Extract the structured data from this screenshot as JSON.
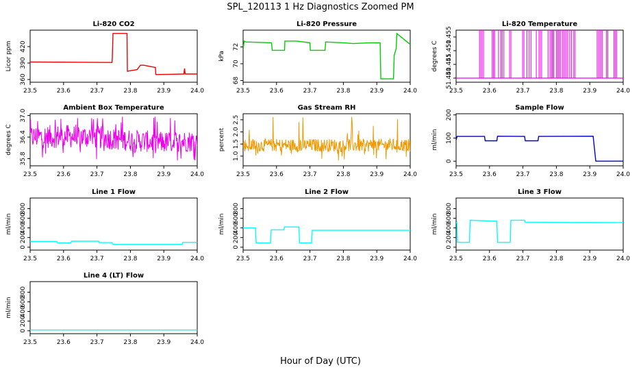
{
  "figure": {
    "title": "SPL_120113  1 Hz Diagnostics Zoomed PM",
    "xlabel": "Hour of Day (UTC)"
  },
  "chart_data": [
    {
      "type": "line",
      "title": "Li-820 CO2",
      "ylabel": "Licor ppm",
      "color": "#ee0000",
      "xlim": [
        23.5,
        24.0
      ],
      "ylim": [
        355,
        450
      ],
      "yticks": [
        360,
        390,
        420
      ],
      "ytick_labels": [
        "360",
        "390",
        "420"
      ],
      "xticks": [
        23.5,
        23.6,
        23.7,
        23.8,
        23.9,
        24.0
      ],
      "xtick_labels": [
        "23.5",
        "23.6",
        "23.7",
        "23.8",
        "23.9",
        "24.0"
      ],
      "x": [
        23.5,
        23.745,
        23.746,
        23.748,
        23.79,
        23.791,
        23.8,
        23.82,
        23.83,
        23.84,
        23.875,
        23.876,
        23.96,
        23.962,
        23.964,
        24.0
      ],
      "y": [
        392,
        391,
        400,
        444,
        444,
        375,
        376,
        378,
        386,
        386,
        382,
        369,
        370,
        380,
        370,
        370
      ]
    },
    {
      "type": "line",
      "title": "Li-820 Pressure",
      "ylabel": "kPa",
      "color": "#00cc00",
      "xlim": [
        23.5,
        24.0
      ],
      "ylim": [
        67.8,
        74.0
      ],
      "yticks": [
        68,
        70,
        72
      ],
      "ytick_labels": [
        "68",
        "70",
        "72"
      ],
      "xticks": [
        23.5,
        23.6,
        23.7,
        23.8,
        23.9,
        24.0
      ],
      "xtick_labels": [
        "23.5",
        "23.6",
        "23.7",
        "23.8",
        "23.9",
        "24.0"
      ],
      "x": [
        23.5,
        23.503,
        23.508,
        23.585,
        23.587,
        23.624,
        23.625,
        23.66,
        23.7,
        23.701,
        23.745,
        23.747,
        23.8,
        23.83,
        23.88,
        23.905,
        23.91,
        23.912,
        23.95,
        23.952,
        23.958,
        23.96,
        24.0
      ],
      "y": [
        71.7,
        72.7,
        72.6,
        72.5,
        71.6,
        71.6,
        72.7,
        72.7,
        72.5,
        71.6,
        71.6,
        72.6,
        72.5,
        72.4,
        72.5,
        72.5,
        72.5,
        68.2,
        68.2,
        71.0,
        71.8,
        73.6,
        72.3
      ]
    },
    {
      "type": "line",
      "title": "Li-820 Temperature",
      "ylabel": "degrees C",
      "color": "#ee00ee",
      "xlim": [
        23.5,
        24.0
      ],
      "ylim": [
        51.4385,
        51.4575
      ],
      "yticks": [
        51.44,
        51.445,
        51.45,
        51.455
      ],
      "ytick_labels": [
        "51.440",
        "51.445",
        "51.450",
        "51.455"
      ],
      "xticks": [
        23.5,
        23.6,
        23.7,
        23.8,
        23.9,
        24.0
      ],
      "xtick_labels": [
        "23.5",
        "23.6",
        "23.7",
        "23.8",
        "23.9",
        "24.0"
      ],
      "baseline": 51.44,
      "spike_top": 51.4575,
      "spikes": [
        23.57,
        23.574,
        23.578,
        23.582,
        23.608,
        23.612,
        23.615,
        23.627,
        23.634,
        23.638,
        23.643,
        23.66,
        23.664,
        23.699,
        23.703,
        23.712,
        23.718,
        23.724,
        23.74,
        23.748,
        23.752,
        23.756,
        23.775,
        23.781,
        23.785,
        23.788,
        23.792,
        23.8,
        23.804,
        23.808,
        23.812,
        23.818,
        23.822,
        23.826,
        23.83,
        23.834,
        23.84,
        23.845,
        23.852,
        23.856,
        23.922,
        23.926,
        23.93,
        23.934,
        23.938,
        23.95,
        23.954,
        23.972,
        23.976,
        23.98
      ]
    },
    {
      "type": "line",
      "title": "Ambient Box Temperature",
      "ylabel": "degrees C",
      "color": "#ee00ee",
      "xlim": [
        23.5,
        24.0
      ],
      "ylim": [
        35.6,
        37.05
      ],
      "yticks": [
        35.8,
        36.4,
        37.0
      ],
      "ytick_labels": [
        "35.8",
        "36.4",
        "37.0"
      ],
      "xticks": [
        23.5,
        23.6,
        23.7,
        23.8,
        23.9,
        24.0
      ],
      "xtick_labels": [
        "23.5",
        "23.6",
        "23.7",
        "23.8",
        "23.9",
        "24.0"
      ],
      "band_x": [
        23.5,
        23.6,
        23.7,
        23.8,
        23.9,
        24.0
      ],
      "band_low": [
        36.08,
        36.1,
        36.08,
        36.0,
        35.95,
        36.0
      ],
      "band_high": [
        36.72,
        36.75,
        36.72,
        36.62,
        36.55,
        36.6
      ],
      "spike_min": 35.75,
      "spike_max": 36.98
    },
    {
      "type": "line",
      "title": "Gas Stream RH",
      "ylabel": "percent",
      "color": "#ee9900",
      "xlim": [
        23.5,
        24.0
      ],
      "ylim": [
        0.6,
        2.75
      ],
      "yticks": [
        1.0,
        1.5,
        2.0,
        2.5
      ],
      "ytick_labels": [
        "1.0",
        "1.5",
        "2.0",
        "2.5"
      ],
      "xticks": [
        23.5,
        23.6,
        23.7,
        23.8,
        23.9,
        24.0
      ],
      "xtick_labels": [
        "23.5",
        "23.6",
        "23.7",
        "23.8",
        "23.9",
        "24.0"
      ],
      "band_x": [
        23.5,
        24.0
      ],
      "band_low": [
        1.18,
        1.18
      ],
      "band_high": [
        1.72,
        1.72
      ],
      "spike_min": 0.8,
      "spike_max": 2.65
    },
    {
      "type": "line",
      "title": "Sample Flow",
      "ylabel": "ml/min",
      "color": "#0000cc",
      "xlim": [
        23.5,
        24.0
      ],
      "ylim": [
        -20,
        205
      ],
      "yticks": [
        0,
        100,
        200
      ],
      "ytick_labels": [
        "0",
        "100",
        "200"
      ],
      "xticks": [
        23.5,
        23.6,
        23.7,
        23.8,
        23.9,
        24.0
      ],
      "xtick_labels": [
        "23.5",
        "23.6",
        "23.7",
        "23.8",
        "23.9",
        "24.0"
      ],
      "x": [
        23.5,
        23.503,
        23.585,
        23.587,
        23.622,
        23.624,
        23.705,
        23.707,
        23.745,
        23.747,
        23.91,
        23.918,
        24.0
      ],
      "y": [
        92,
        107,
        107,
        88,
        88,
        108,
        107,
        88,
        88,
        107,
        108,
        0,
        0
      ]
    },
    {
      "type": "line",
      "title": "Line 1 Flow",
      "ylabel": "ml/min",
      "color": "#00ffff",
      "xlim": [
        23.5,
        24.0
      ],
      "ylim": [
        -60,
        1020
      ],
      "yticks": [
        0,
        200,
        400,
        600,
        800
      ],
      "ytick_labels": [
        "0",
        "200",
        "400",
        "600",
        "800"
      ],
      "xticks": [
        23.5,
        23.6,
        23.7,
        23.8,
        23.9,
        24.0
      ],
      "xtick_labels": [
        "23.5",
        "23.6",
        "23.7",
        "23.8",
        "23.9",
        "24.0"
      ],
      "x": [
        23.5,
        23.58,
        23.582,
        23.622,
        23.624,
        23.705,
        23.707,
        23.745,
        23.747,
        23.955,
        23.957,
        24.0
      ],
      "y": [
        120,
        120,
        90,
        90,
        125,
        125,
        95,
        95,
        60,
        60,
        100,
        100
      ]
    },
    {
      "type": "line",
      "title": "Line 2 Flow",
      "ylabel": "ml/min",
      "color": "#00ffff",
      "xlim": [
        23.5,
        24.0
      ],
      "ylim": [
        -60,
        1020
      ],
      "yticks": [
        0,
        200,
        400,
        600,
        800
      ],
      "ytick_labels": [
        "0",
        "200",
        "400",
        "600",
        "800"
      ],
      "xticks": [
        23.5,
        23.6,
        23.7,
        23.8,
        23.9,
        24.0
      ],
      "xtick_labels": [
        "23.5",
        "23.6",
        "23.7",
        "23.8",
        "23.9",
        "24.0"
      ],
      "x": [
        23.5,
        23.537,
        23.539,
        23.582,
        23.584,
        23.622,
        23.624,
        23.667,
        23.669,
        23.705,
        23.707,
        24.0
      ],
      "y": [
        400,
        400,
        90,
        90,
        360,
        360,
        420,
        420,
        90,
        90,
        350,
        350
      ]
    },
    {
      "type": "line",
      "title": "Line 3 Flow",
      "ylabel": "ml/min",
      "color": "#00ffff",
      "xlim": [
        23.5,
        24.0
      ],
      "ylim": [
        -60,
        1020
      ],
      "yticks": [
        0,
        200,
        400,
        600,
        800
      ],
      "ytick_labels": [
        "0",
        "200",
        "400",
        "600",
        "800"
      ],
      "xticks": [
        23.5,
        23.6,
        23.7,
        23.8,
        23.9,
        24.0
      ],
      "xtick_labels": [
        "23.5",
        "23.6",
        "23.7",
        "23.8",
        "23.9",
        "24.0"
      ],
      "x": [
        23.5,
        23.502,
        23.504,
        23.54,
        23.542,
        23.622,
        23.624,
        23.662,
        23.664,
        23.705,
        23.707,
        24.0
      ],
      "y": [
        500,
        520,
        100,
        100,
        560,
        540,
        100,
        100,
        560,
        560,
        520,
        510
      ]
    },
    {
      "type": "line",
      "title": "Line 4 (LT) Flow",
      "ylabel": "ml/min",
      "color": "#00ffff",
      "xlim": [
        23.5,
        24.0
      ],
      "ylim": [
        -60,
        1020
      ],
      "yticks": [
        0,
        200,
        400,
        600,
        800
      ],
      "ytick_labels": [
        "0",
        "200",
        "400",
        "600",
        "800"
      ],
      "xticks": [
        23.5,
        23.6,
        23.7,
        23.8,
        23.9,
        24.0
      ],
      "xtick_labels": [
        "23.5",
        "23.6",
        "23.7",
        "23.8",
        "23.9",
        "24.0"
      ],
      "x": [
        23.5,
        24.0
      ],
      "y": [
        15,
        15
      ]
    }
  ]
}
